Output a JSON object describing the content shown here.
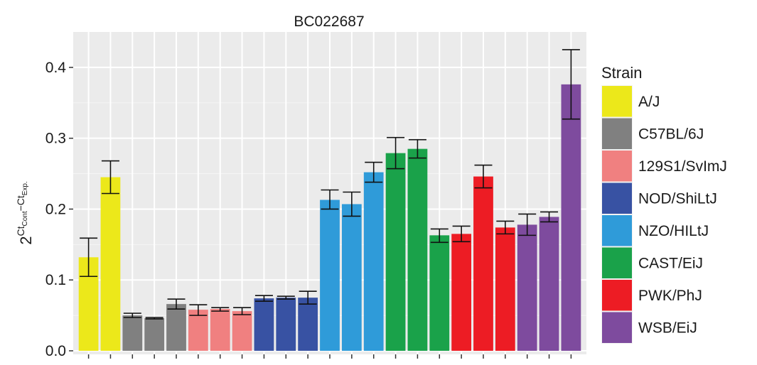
{
  "chart_data": {
    "type": "bar",
    "title": "BC022687",
    "ylabel": {
      "base": "2",
      "exp_a": "Ct",
      "exp_a_sub": "Cont",
      "exp_op": "−",
      "exp_b": "Ct",
      "exp_b_sub": "Exp."
    },
    "xlabel": "",
    "ylim": [
      -0.005,
      0.45
    ],
    "yticks": [
      0.0,
      0.1,
      0.2,
      0.3,
      0.4
    ],
    "ytick_labels": [
      "0.0",
      "0.1",
      "0.2",
      "0.3",
      "0.4"
    ],
    "grid": true,
    "legend": {
      "title": "Strain",
      "placement": "right",
      "entries": [
        {
          "name": "A/J",
          "color": "#ECE81A"
        },
        {
          "name": "C57BL/6J",
          "color": "#808080"
        },
        {
          "name": "129S1/SvImJ",
          "color": "#F08080"
        },
        {
          "name": "NOD/ShiLtJ",
          "color": "#3852A3"
        },
        {
          "name": "NZO/HILtJ",
          "color": "#2F9BD9"
        },
        {
          "name": "CAST/EiJ",
          "color": "#1AA24A"
        },
        {
          "name": "PWK/PhJ",
          "color": "#ED1C24"
        },
        {
          "name": "WSB/EiJ",
          "color": "#7E4B9E"
        }
      ]
    },
    "bars": [
      {
        "strain": "A/J",
        "value": 0.132,
        "err_low": 0.105,
        "err_high": 0.159
      },
      {
        "strain": "A/J",
        "value": 0.245,
        "err_low": 0.222,
        "err_high": 0.268
      },
      {
        "strain": "C57BL/6J",
        "value": 0.05,
        "err_low": 0.047,
        "err_high": 0.053
      },
      {
        "strain": "C57BL/6J",
        "value": 0.046,
        "err_low": 0.045,
        "err_high": 0.047
      },
      {
        "strain": "C57BL/6J",
        "value": 0.066,
        "err_low": 0.059,
        "err_high": 0.073
      },
      {
        "strain": "129S1/SvImJ",
        "value": 0.058,
        "err_low": 0.05,
        "err_high": 0.065
      },
      {
        "strain": "129S1/SvImJ",
        "value": 0.059,
        "err_low": 0.056,
        "err_high": 0.061
      },
      {
        "strain": "129S1/SvImJ",
        "value": 0.056,
        "err_low": 0.051,
        "err_high": 0.061
      },
      {
        "strain": "NOD/ShiLtJ",
        "value": 0.074,
        "err_low": 0.07,
        "err_high": 0.078
      },
      {
        "strain": "NOD/ShiLtJ",
        "value": 0.075,
        "err_low": 0.073,
        "err_high": 0.077
      },
      {
        "strain": "NOD/ShiLtJ",
        "value": 0.075,
        "err_low": 0.066,
        "err_high": 0.084
      },
      {
        "strain": "NZO/HILtJ",
        "value": 0.213,
        "err_low": 0.2,
        "err_high": 0.227
      },
      {
        "strain": "NZO/HILtJ",
        "value": 0.207,
        "err_low": 0.19,
        "err_high": 0.224
      },
      {
        "strain": "NZO/HILtJ",
        "value": 0.252,
        "err_low": 0.238,
        "err_high": 0.266
      },
      {
        "strain": "CAST/EiJ",
        "value": 0.279,
        "err_low": 0.257,
        "err_high": 0.301
      },
      {
        "strain": "CAST/EiJ",
        "value": 0.285,
        "err_low": 0.272,
        "err_high": 0.298
      },
      {
        "strain": "CAST/EiJ",
        "value": 0.163,
        "err_low": 0.153,
        "err_high": 0.172
      },
      {
        "strain": "PWK/PhJ",
        "value": 0.165,
        "err_low": 0.154,
        "err_high": 0.176
      },
      {
        "strain": "PWK/PhJ",
        "value": 0.246,
        "err_low": 0.23,
        "err_high": 0.262
      },
      {
        "strain": "PWK/PhJ",
        "value": 0.174,
        "err_low": 0.165,
        "err_high": 0.183
      },
      {
        "strain": "WSB/EiJ",
        "value": 0.178,
        "err_low": 0.163,
        "err_high": 0.193
      },
      {
        "strain": "WSB/EiJ",
        "value": 0.189,
        "err_low": 0.182,
        "err_high": 0.196
      },
      {
        "strain": "WSB/EiJ",
        "value": 0.376,
        "err_low": 0.327,
        "err_high": 0.425
      }
    ]
  }
}
